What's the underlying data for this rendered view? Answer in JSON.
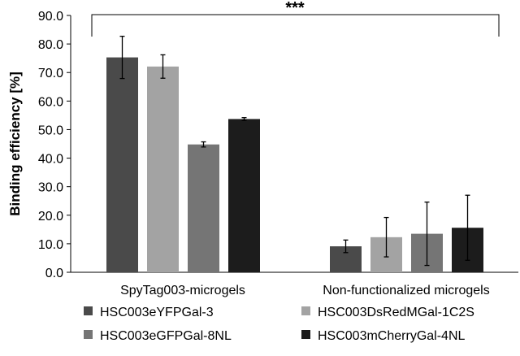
{
  "chart_data": {
    "type": "bar",
    "title": "",
    "xlabel": "",
    "ylabel": "Binding efficiency  [%]",
    "ylim": [
      0,
      90
    ],
    "yticks": [
      "0.0",
      "10.0",
      "20.0",
      "30.0",
      "40.0",
      "50.0",
      "60.0",
      "70.0",
      "80.0",
      "90.0"
    ],
    "categories": [
      "SpyTag003-microgels",
      "Non-functionalized microgels"
    ],
    "series": [
      {
        "name": "HSC003eYFPGal-3",
        "color": "#4a4a4a",
        "values": [
          75.3,
          9.1
        ],
        "errors": [
          7.4,
          2.2
        ]
      },
      {
        "name": "HSC003DsRedMGal-1C2S",
        "color": "#a3a3a3",
        "values": [
          72.1,
          12.3
        ],
        "errors": [
          4.1,
          6.9
        ]
      },
      {
        "name": "HSC003eGFPGal-8NL",
        "color": "#757575",
        "values": [
          44.8,
          13.5
        ],
        "errors": [
          0.9,
          11.1
        ]
      },
      {
        "name": "HSC003mCherryGal-4NL",
        "color": "#1c1c1c",
        "values": [
          53.7,
          15.6
        ],
        "errors": [
          0.5,
          11.4
        ]
      }
    ],
    "annotation": "***",
    "legend_placement": "bottom",
    "grid": false
  }
}
